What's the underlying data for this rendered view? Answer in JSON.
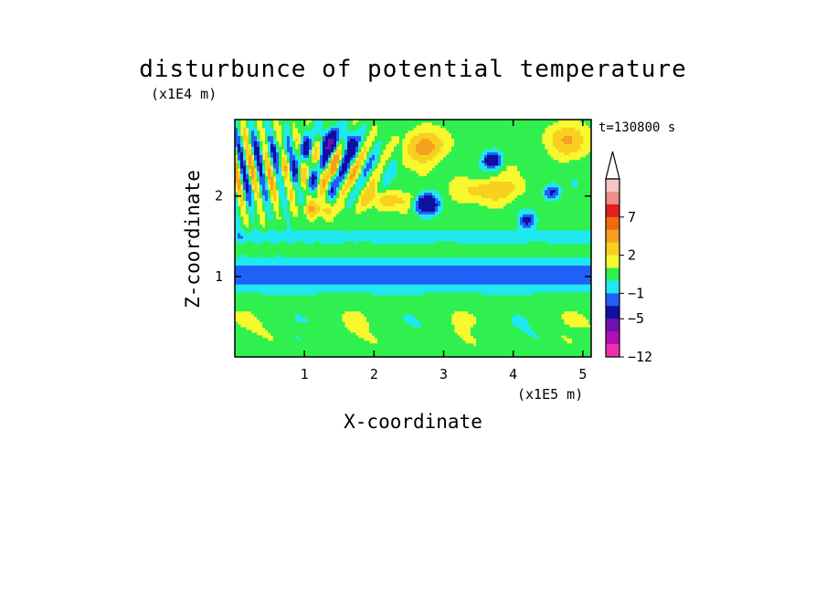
{
  "chart_data": {
    "type": "heatmap",
    "title": "disturbunce of potential temperature",
    "xlabel": "X-coordinate",
    "ylabel": "Z-coordinate",
    "x_unit": "(x1E5 m)",
    "y_unit": "(x1E4 m)",
    "time_label": "t=130800 s",
    "xlim": [
      0.0,
      5.12
    ],
    "ylim": [
      0.0,
      2.95
    ],
    "x_ticks": [
      "1",
      "2",
      "3",
      "4",
      "5"
    ],
    "x_tick_values": [
      1,
      2,
      3,
      4,
      5
    ],
    "y_ticks": [
      "1",
      "2"
    ],
    "y_tick_values": [
      1,
      2
    ],
    "grid": false,
    "legend": "colorbar-right",
    "colorbar_labels": [
      "7",
      "2",
      "−1",
      "−5",
      "−12"
    ],
    "colorbar_label_levels": [
      7,
      2,
      -1,
      -5,
      -12
    ],
    "levels": [
      {
        "level": 12,
        "color": "#f5c6c6"
      },
      {
        "level": 9,
        "color": "#ef8c8c"
      },
      {
        "level": 7,
        "color": "#e02020"
      },
      {
        "level": 5,
        "color": "#ef6a10"
      },
      {
        "level": 3,
        "color": "#f5a020"
      },
      {
        "level": 2,
        "color": "#f8d020"
      },
      {
        "level": 1,
        "color": "#f8f830"
      },
      {
        "level": 0,
        "color": "#30f050"
      },
      {
        "level": -1,
        "color": "#20e8f0"
      },
      {
        "level": -2,
        "color": "#2060f8"
      },
      {
        "level": -5,
        "color": "#1010a0"
      },
      {
        "level": -7,
        "color": "#7010b0"
      },
      {
        "level": -9,
        "color": "#b010b0"
      },
      {
        "level": -12,
        "color": "#f030b0"
      }
    ]
  }
}
